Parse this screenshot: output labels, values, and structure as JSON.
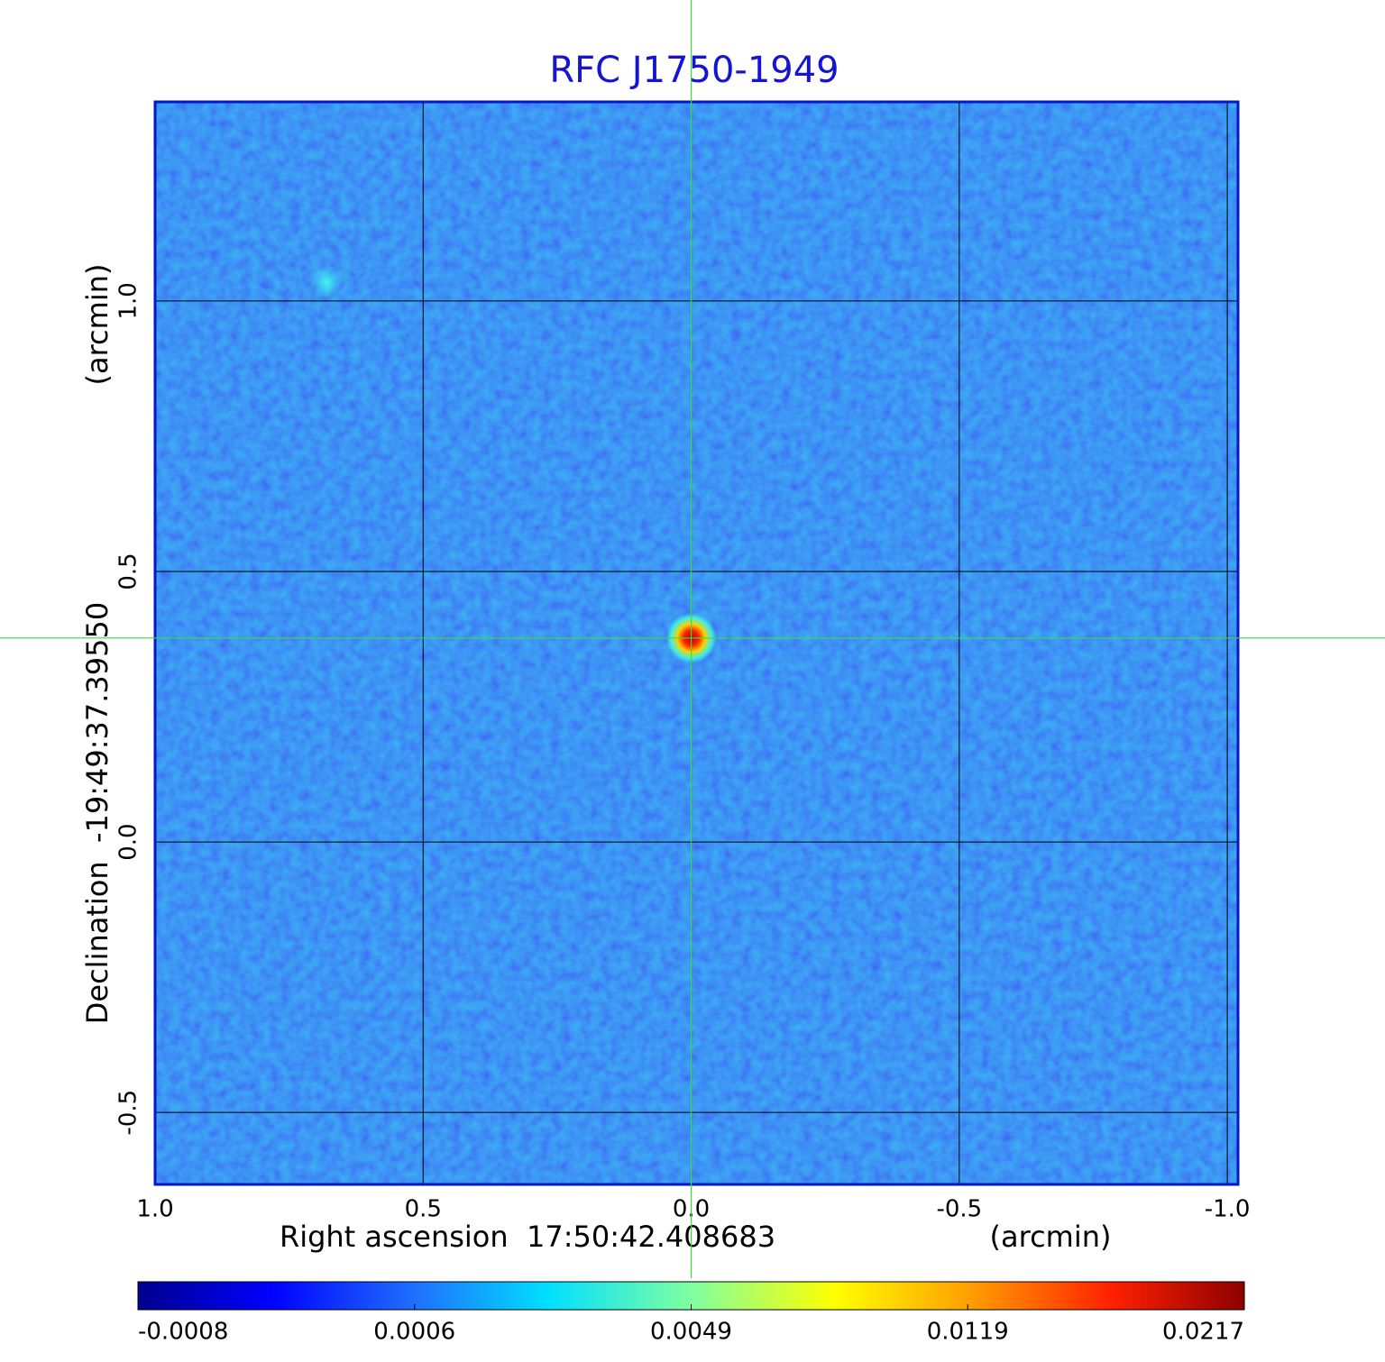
{
  "chart_data": {
    "type": "image",
    "title": "RFC J1750-1949",
    "x_label": "Right ascension  17:50:42.408683",
    "x_unit": "(arcmin)",
    "y_label": "Declination  -19:49:37.39550",
    "y_unit": "(arcmin)",
    "xlim": [
      1.0,
      -1.02
    ],
    "ylim": [
      -0.633,
      1.368
    ],
    "xticks": [
      {
        "value": 1.0,
        "label": "1.0"
      },
      {
        "value": 0.5,
        "label": "0.5"
      },
      {
        "value": 0,
        "label": "0.0"
      },
      {
        "value": -0.5,
        "label": "-0.5"
      },
      {
        "value": -1.0,
        "label": "-1.0"
      }
    ],
    "yticks": [
      {
        "value": -0.5,
        "label": "-0.5"
      },
      {
        "value": 0,
        "label": "0.0"
      },
      {
        "value": 0.5,
        "label": "0.5"
      },
      {
        "value": 1.0,
        "label": "1.0"
      }
    ],
    "grid": true,
    "crosshair": {
      "x": 0,
      "y": 0.377
    },
    "colorbar_ticks": [
      -0.0008,
      0.0006,
      0.0049,
      0.0119,
      0.0217
    ]
  }
}
